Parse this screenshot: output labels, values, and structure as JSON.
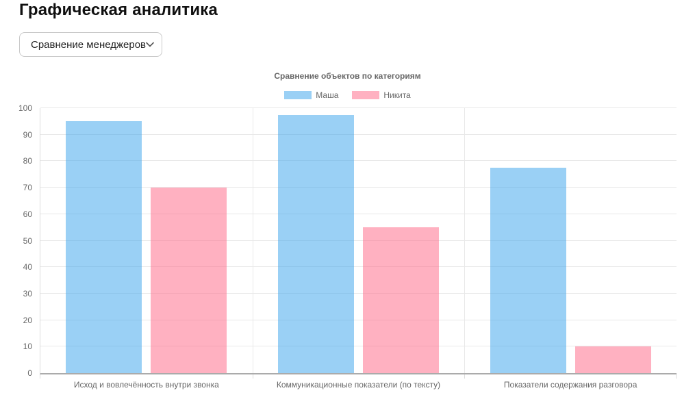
{
  "page": {
    "title": "Графическая аналитика",
    "background": "#ffffff"
  },
  "controls": {
    "report_select": {
      "value": "Сравнение менеджеров"
    }
  },
  "chart_data": {
    "type": "bar",
    "title": "Сравнение объектов по категориям",
    "categories": [
      "Исход и вовлечённость внутри звонка",
      "Коммуникационные показатели (по тексту)",
      "Показатели содержания разговора"
    ],
    "series": [
      {
        "name": "Маша",
        "fill": "rgba(54, 162, 235, 0.5)",
        "color_hex": "#9AD0F5",
        "values": [
          95,
          97.5,
          77.5
        ]
      },
      {
        "name": "Никита",
        "fill": "rgba(255, 99, 132, 0.5)",
        "color_hex": "#FFB1C1",
        "values": [
          70,
          55,
          10
        ]
      }
    ],
    "xlabel": "",
    "ylabel": "",
    "ylim": [
      0,
      100
    ],
    "y_ticks": [
      0,
      10,
      20,
      30,
      40,
      50,
      60,
      70,
      80,
      90,
      100
    ],
    "grid": true,
    "legend_position": "top",
    "text_color": "#666666",
    "grid_color": "#e8e8e8",
    "axis_line_color": "#ababab"
  }
}
